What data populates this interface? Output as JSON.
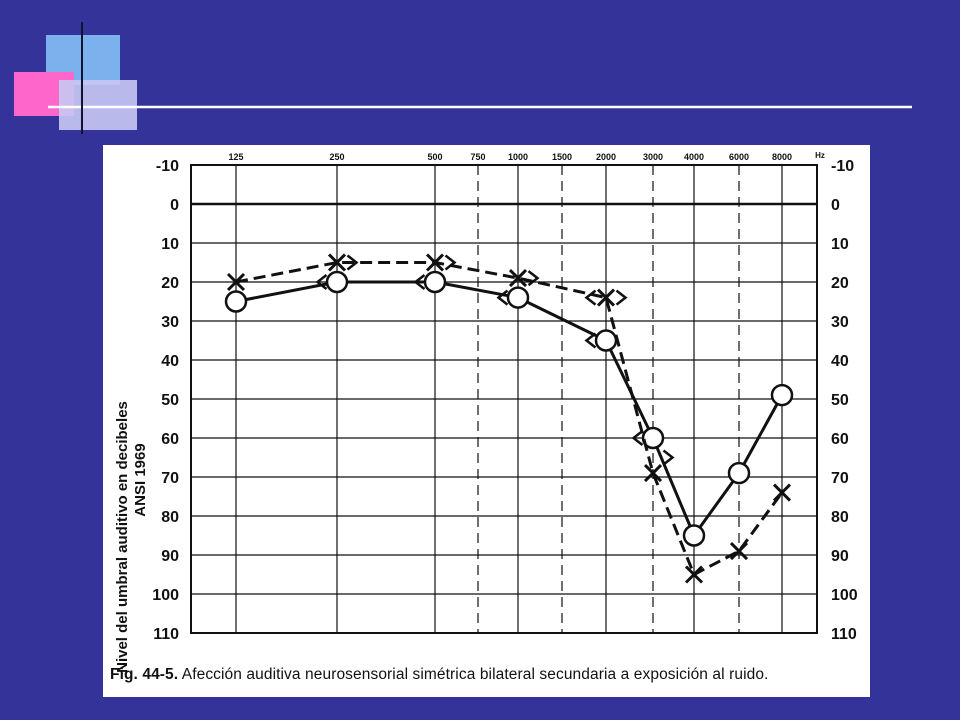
{
  "slide": {
    "background": "#333399",
    "caption_label": "Fig. 44-5.",
    "caption_text": "Afección auditiva neurosensorial simétrica bilateral secundaria a exposición al ruido."
  },
  "chart_data": {
    "type": "line",
    "x_tick_labels": [
      "125",
      "250",
      "500",
      "750",
      "1000",
      "1500",
      "2000",
      "3000",
      "4000",
      "6000",
      "8000"
    ],
    "x_unit": "Hz",
    "ylabel": "Nivel del umbral auditivo en decibeles",
    "ylabel_line2": "ANSI 1969",
    "y_ticks": [
      -10,
      0,
      10,
      20,
      30,
      40,
      50,
      60,
      70,
      80,
      90,
      100,
      110
    ],
    "ylim": [
      -10,
      110
    ],
    "y_inverted": true,
    "grid": true,
    "series": [
      {
        "marker": "circle",
        "line_style": "solid",
        "color": "#111111",
        "points": [
          {
            "x": "125",
            "y": 25
          },
          {
            "x": "250",
            "y": 20
          },
          {
            "x": "500",
            "y": 20
          },
          {
            "x": "1000",
            "y": 24
          },
          {
            "x": "2000",
            "y": 35
          },
          {
            "x": "3000",
            "y": 60
          },
          {
            "x": "4000",
            "y": 85
          },
          {
            "x": "6000",
            "y": 69
          },
          {
            "x": "8000",
            "y": 49
          }
        ]
      },
      {
        "marker": "x",
        "line_style": "dashed",
        "color": "#111111",
        "points": [
          {
            "x": "125",
            "y": 20
          },
          {
            "x": "250",
            "y": 15
          },
          {
            "x": "500",
            "y": 15
          },
          {
            "x": "1000",
            "y": 19
          },
          {
            "x": "2000",
            "y": 24
          },
          {
            "x": "3000",
            "y": 69
          },
          {
            "x": "4000",
            "y": 95
          },
          {
            "x": "6000",
            "y": 89
          },
          {
            "x": "8000",
            "y": 74
          }
        ]
      }
    ],
    "bone_conduction_markers": [
      {
        "x": "250",
        "y": 20,
        "symbol": "<"
      },
      {
        "x": "250",
        "y": 15,
        "symbol": ">"
      },
      {
        "x": "500",
        "y": 20,
        "symbol": "<"
      },
      {
        "x": "500",
        "y": 15,
        "symbol": ">"
      },
      {
        "x": "1000",
        "y": 24,
        "symbol": "<"
      },
      {
        "x": "1000",
        "y": 19,
        "symbol": ">"
      },
      {
        "x": "2000",
        "y": 35,
        "symbol": "<"
      },
      {
        "x": "2000",
        "y": 24,
        "symbol": "<"
      },
      {
        "x": "2000",
        "y": 24,
        "symbol": ">"
      },
      {
        "x": "3000",
        "y": 60,
        "symbol": "<"
      },
      {
        "x": "3000",
        "y": 65,
        "symbol": ">"
      }
    ]
  }
}
